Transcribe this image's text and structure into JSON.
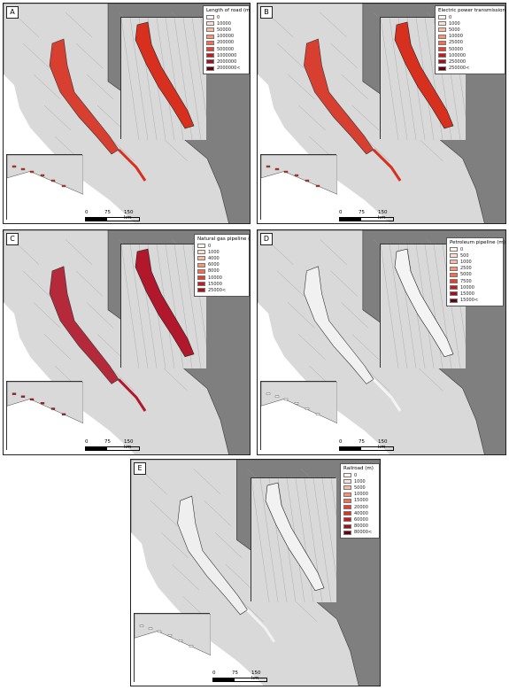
{
  "figure": {
    "panels": [
      {
        "letter": "A",
        "legend_title": "Length of road (m)",
        "legend_items": [
          "0",
          "10000",
          "50000",
          "100000",
          "200000",
          "500000",
          "1000000",
          "2000000",
          "2000000<"
        ],
        "legend_colors": [
          "#fff5f0",
          "#fde0d2",
          "#fcbba1",
          "#fc9272",
          "#fb6a4a",
          "#ef3b2c",
          "#cb181d",
          "#a50f15",
          "#67000d"
        ],
        "fill": "#d7301f",
        "scale": {
          "labels": [
            "0",
            "75",
            "150 km"
          ]
        }
      },
      {
        "letter": "B",
        "legend_title": "Electric power transmission (m)",
        "legend_items": [
          "0",
          "1000",
          "5000",
          "10000",
          "25000",
          "50000",
          "100000",
          "250000",
          "250000<"
        ],
        "legend_colors": [
          "#fff5f0",
          "#fde0d2",
          "#fcbba1",
          "#fc9272",
          "#fb6a4a",
          "#ef3b2c",
          "#cb181d",
          "#a50f15",
          "#67000d"
        ],
        "fill": "#d7301f",
        "scale": {
          "labels": [
            "0",
            "75",
            "150 km"
          ]
        }
      },
      {
        "letter": "C",
        "legend_title": "Natural gas pipeline (m)",
        "legend_items": [
          "0",
          "1000",
          "4000",
          "6000",
          "8000",
          "10000",
          "15000",
          "25000<"
        ],
        "legend_colors": [
          "#fff5f0",
          "#fde0d2",
          "#fcbba1",
          "#fc9272",
          "#fb6a4a",
          "#ef3b2c",
          "#cb181d",
          "#a50f15"
        ],
        "fill": "#b2182b",
        "scale": {
          "labels": [
            "0",
            "75",
            "150 km"
          ]
        }
      },
      {
        "letter": "D",
        "legend_title": "Petroleum pipeline (m)",
        "legend_items": [
          "0",
          "500",
          "1000",
          "2500",
          "5000",
          "7500",
          "10000",
          "15000",
          "15000<"
        ],
        "legend_colors": [
          "#fff5f0",
          "#fde0d2",
          "#fcbba1",
          "#fc9272",
          "#fb6a4a",
          "#ef3b2c",
          "#cb181d",
          "#a50f15",
          "#67000d"
        ],
        "fill": "#f4f4f4",
        "scale": {
          "labels": [
            "0",
            "75",
            "150 km"
          ]
        }
      },
      {
        "letter": "E",
        "legend_title": "Railroad (m)",
        "legend_items": [
          "0",
          "1000",
          "5000",
          "10000",
          "15000",
          "20000",
          "40000",
          "60000",
          "80000",
          "80000<"
        ],
        "legend_colors": [
          "#fff5f0",
          "#fde0d2",
          "#fcbba1",
          "#fc9272",
          "#fb6a4a",
          "#ef3b2c",
          "#e03127",
          "#cb181d",
          "#a50f15",
          "#67000d"
        ],
        "fill": "#f2f2f2",
        "scale": {
          "labels": [
            "0",
            "75",
            "150 km"
          ]
        }
      }
    ],
    "colors": {
      "land": "#d9d9d9",
      "outside": "#7f7f7f",
      "ocean": "#ffffff",
      "border": "#444444"
    }
  }
}
